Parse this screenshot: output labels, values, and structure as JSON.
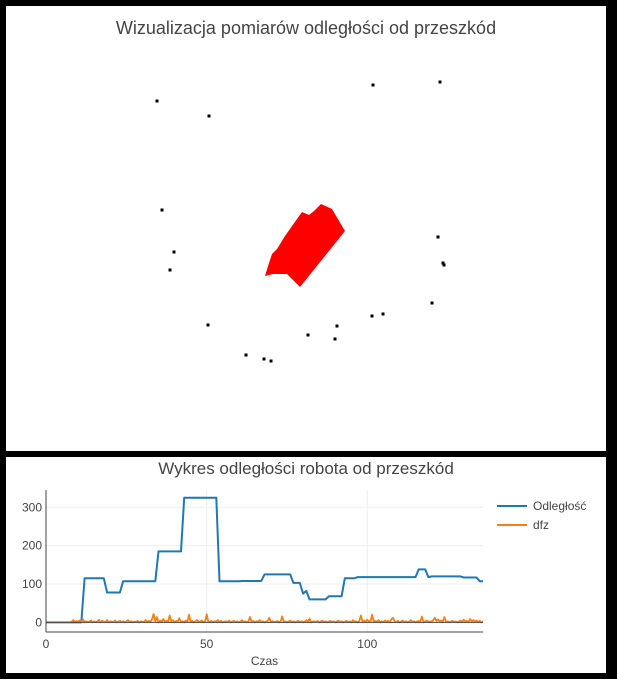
{
  "top": {
    "title": "Wizualizacja pomiarów odległości od przeszkód",
    "robot_color": "#ff0000",
    "obstacle_color": "#000000"
  },
  "bottom": {
    "title": "Wykres odległości robota od przeszkód",
    "chart_data": {
      "type": "line",
      "title": "Wykres odległości robota od przeszkód",
      "xlabel": "Czas",
      "ylabel": "",
      "xlim": [
        0,
        136
      ],
      "ylim": [
        -25,
        345
      ],
      "x_ticks": [
        0,
        50,
        100
      ],
      "y_ticks": [
        0,
        100,
        200,
        300
      ],
      "legend_position": "top-right",
      "grid": true,
      "series": [
        {
          "name": "Odległość",
          "color": "#1f77b4",
          "points": [
            [
              0,
              0
            ],
            [
              11,
              0
            ],
            [
              12,
              115
            ],
            [
              18,
              115
            ],
            [
              19,
              78
            ],
            [
              23,
              78
            ],
            [
              24,
              107
            ],
            [
              34,
              107
            ],
            [
              35,
              185
            ],
            [
              42,
              185
            ],
            [
              43,
              325
            ],
            [
              53,
              325
            ],
            [
              54,
              107
            ],
            [
              60,
              107
            ],
            [
              61,
              108
            ],
            [
              67,
              108
            ],
            [
              68,
              125
            ],
            [
              76,
              125
            ],
            [
              77,
              103
            ],
            [
              79,
              103
            ],
            [
              80,
              75
            ],
            [
              81,
              82
            ],
            [
              82,
              60
            ],
            [
              87,
              60
            ],
            [
              88,
              68
            ],
            [
              92,
              68
            ],
            [
              93,
              115
            ],
            [
              96,
              115
            ],
            [
              97,
              118
            ],
            [
              115,
              118
            ],
            [
              116,
              138
            ],
            [
              118,
              138
            ],
            [
              119,
              118
            ],
            [
              120,
              120
            ],
            [
              129,
              120
            ],
            [
              130,
              117
            ],
            [
              134,
              117
            ],
            [
              135,
              107
            ],
            [
              136,
              107
            ]
          ]
        },
        {
          "name": "dfz",
          "color": "#ff7f0e",
          "x_start": 0,
          "x_step": 0.5,
          "values": [
            0,
            0,
            0,
            0,
            0,
            0,
            0,
            0,
            0,
            0,
            0,
            0,
            0,
            0,
            0,
            0,
            2,
            6,
            1,
            4,
            2,
            5,
            1,
            8,
            0,
            3,
            1,
            2,
            5,
            0,
            3,
            1,
            2,
            7,
            0,
            4,
            2,
            1,
            6,
            0,
            3,
            2,
            1,
            5,
            0,
            2,
            4,
            1,
            3,
            0,
            2,
            6,
            1,
            3,
            0,
            2,
            1,
            4,
            0,
            3,
            2,
            1,
            6,
            2,
            4,
            1,
            8,
            22,
            3,
            14,
            0,
            5,
            2,
            9,
            1,
            4,
            2,
            18,
            3,
            6,
            0,
            4,
            2,
            11,
            1,
            3,
            0,
            5,
            2,
            20,
            1,
            4,
            0,
            3,
            6,
            1,
            2,
            5,
            0,
            3,
            21,
            2,
            1,
            4,
            0,
            3,
            2,
            6,
            1,
            4,
            0,
            2,
            3,
            1,
            5,
            0,
            2,
            4,
            1,
            3,
            0,
            2,
            6,
            1,
            3,
            0,
            2,
            14,
            1,
            4,
            0,
            3,
            2,
            6,
            1,
            3,
            0,
            2,
            4,
            12,
            1,
            3,
            2,
            1,
            4,
            0,
            2,
            16,
            1,
            3,
            0,
            2,
            5,
            1,
            3,
            0,
            2,
            4,
            1,
            3,
            0,
            2,
            6,
            1,
            10,
            0,
            2,
            3,
            1,
            4,
            0,
            2,
            5,
            1,
            3,
            0,
            2,
            4,
            1,
            3,
            0,
            2,
            5,
            1,
            3,
            0,
            2,
            4,
            1,
            3,
            0,
            6,
            2,
            3,
            0,
            4,
            18,
            2,
            5,
            1,
            7,
            3,
            2,
            20,
            1,
            4,
            2,
            6,
            0,
            3,
            1,
            5,
            2,
            4,
            0,
            8,
            12,
            3,
            1,
            4,
            0,
            2,
            5,
            1,
            3,
            0,
            2,
            6,
            1,
            3,
            0,
            2,
            4,
            1,
            15,
            0,
            2,
            5,
            1,
            3,
            2,
            6,
            12,
            4,
            8,
            3,
            5,
            2,
            14,
            1,
            3,
            0,
            2,
            4,
            1,
            3,
            0,
            2,
            5,
            1,
            7,
            2,
            4,
            1,
            9,
            3,
            6,
            2,
            5,
            1,
            4,
            0,
            3,
            2,
            4,
            1,
            3,
            0,
            5,
            22,
            8,
            16,
            3,
            10,
            2,
            5,
            1,
            4,
            0,
            2,
            3,
            1,
            3,
            0,
            2,
            5,
            1,
            3,
            6,
            2,
            4,
            8,
            3,
            12
          ]
        }
      ]
    }
  }
}
